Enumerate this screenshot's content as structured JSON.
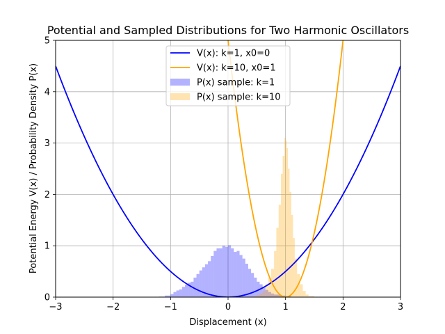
{
  "chart_data": {
    "type": "line",
    "title": "Potential and Sampled Distributions for Two Harmonic Oscillators",
    "xlabel": "Displacement (x)",
    "ylabel": "Potential Energy V(x) / Probability Density P(x)",
    "xlim": [
      -3,
      3
    ],
    "ylim": [
      0,
      5
    ],
    "xticks": [
      "−3",
      "−2",
      "−1",
      "0",
      "1",
      "2",
      "3"
    ],
    "yticks": [
      "0",
      "1",
      "2",
      "3",
      "4",
      "5"
    ],
    "grid": true,
    "legend_position": "top-center",
    "series": [
      {
        "name": "V(x): k=1, x0=0",
        "kind": "line",
        "color": "#0000ff",
        "k": 1,
        "x0": 0
      },
      {
        "name": "V(x): k=10, x0=1",
        "kind": "line",
        "color": "#ffa500",
        "k": 10,
        "x0": 1
      },
      {
        "name": "P(x) sample: k=1",
        "kind": "histogram",
        "color": "#0000ff",
        "opacity": 0.3,
        "bins": [
          [
            -1.2,
            -1.1,
            0.01
          ],
          [
            -1.1,
            -1.0,
            0.03
          ],
          [
            -1.0,
            -0.95,
            0.06
          ],
          [
            -0.95,
            -0.9,
            0.1
          ],
          [
            -0.9,
            -0.85,
            0.13
          ],
          [
            -0.85,
            -0.8,
            0.15
          ],
          [
            -0.8,
            -0.75,
            0.2
          ],
          [
            -0.75,
            -0.7,
            0.24
          ],
          [
            -0.7,
            -0.65,
            0.28
          ],
          [
            -0.65,
            -0.6,
            0.3
          ],
          [
            -0.6,
            -0.55,
            0.38
          ],
          [
            -0.55,
            -0.5,
            0.45
          ],
          [
            -0.5,
            -0.45,
            0.52
          ],
          [
            -0.45,
            -0.4,
            0.58
          ],
          [
            -0.4,
            -0.35,
            0.64
          ],
          [
            -0.35,
            -0.3,
            0.7
          ],
          [
            -0.3,
            -0.25,
            0.8
          ],
          [
            -0.25,
            -0.2,
            0.9
          ],
          [
            -0.2,
            -0.1,
            0.95
          ],
          [
            -0.1,
            -0.05,
            1.0
          ],
          [
            -0.05,
            0.0,
            0.98
          ],
          [
            0.0,
            0.05,
            1.01
          ],
          [
            0.05,
            0.1,
            0.95
          ],
          [
            0.1,
            0.15,
            0.88
          ],
          [
            0.15,
            0.2,
            0.9
          ],
          [
            0.2,
            0.25,
            0.82
          ],
          [
            0.25,
            0.3,
            0.75
          ],
          [
            0.3,
            0.35,
            0.65
          ],
          [
            0.35,
            0.4,
            0.55
          ],
          [
            0.4,
            0.45,
            0.47
          ],
          [
            0.45,
            0.5,
            0.38
          ],
          [
            0.5,
            0.55,
            0.3
          ],
          [
            0.55,
            0.6,
            0.25
          ],
          [
            0.6,
            0.65,
            0.2
          ],
          [
            0.65,
            0.7,
            0.14
          ],
          [
            0.7,
            0.75,
            0.1
          ],
          [
            0.75,
            0.8,
            0.07
          ],
          [
            0.8,
            0.9,
            0.05
          ],
          [
            0.9,
            1.0,
            0.03
          ],
          [
            1.0,
            1.1,
            0.015
          ]
        ]
      },
      {
        "name": "P(x) sample: k=10",
        "kind": "histogram",
        "color": "#ffa500",
        "opacity": 0.3,
        "bins": [
          [
            0.4,
            0.45,
            0.01
          ],
          [
            0.45,
            0.5,
            0.02
          ],
          [
            0.5,
            0.55,
            0.04
          ],
          [
            0.55,
            0.6,
            0.07
          ],
          [
            0.6,
            0.65,
            0.12
          ],
          [
            0.65,
            0.7,
            0.22
          ],
          [
            0.7,
            0.75,
            0.38
          ],
          [
            0.75,
            0.8,
            0.55
          ],
          [
            0.8,
            0.84,
            0.9
          ],
          [
            0.84,
            0.88,
            1.35
          ],
          [
            0.88,
            0.92,
            1.8
          ],
          [
            0.92,
            0.95,
            2.4
          ],
          [
            0.95,
            0.98,
            2.75
          ],
          [
            0.98,
            1.0,
            3.1
          ],
          [
            1.0,
            1.02,
            3.05
          ],
          [
            1.02,
            1.04,
            2.9
          ],
          [
            1.04,
            1.07,
            2.5
          ],
          [
            1.07,
            1.1,
            2.05
          ],
          [
            1.1,
            1.13,
            1.6
          ],
          [
            1.13,
            1.16,
            1.15
          ],
          [
            1.16,
            1.2,
            0.75
          ],
          [
            1.2,
            1.25,
            0.45
          ],
          [
            1.25,
            1.3,
            0.25
          ],
          [
            1.3,
            1.35,
            0.12
          ],
          [
            1.35,
            1.4,
            0.05
          ],
          [
            1.4,
            1.5,
            0.02
          ]
        ]
      }
    ]
  }
}
